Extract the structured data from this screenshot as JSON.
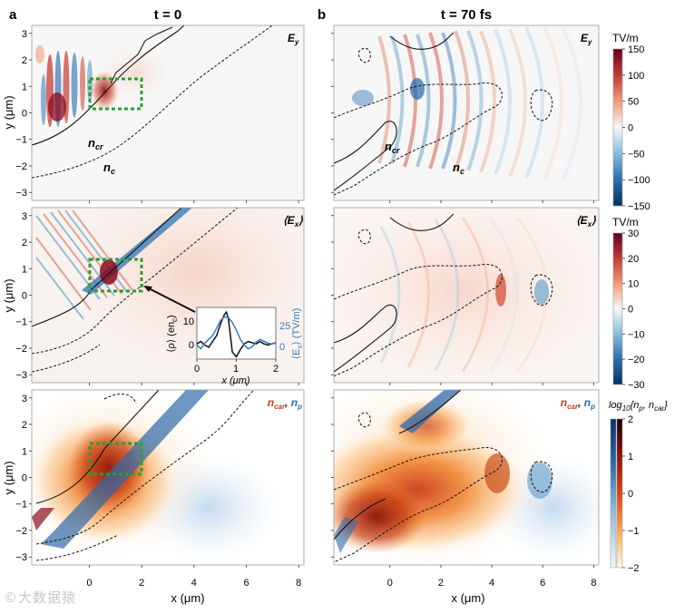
{
  "figure": {
    "panel_labels": [
      "a",
      "b"
    ],
    "column_titles": [
      "t = 0",
      "t = 70 fs"
    ],
    "watermark": "©大数据猿"
  },
  "chart_data": {
    "type": "heatmap",
    "x_axis": {
      "label": "x (μm)",
      "range": [
        -2.2,
        8.2
      ],
      "ticks": [
        0,
        2,
        4,
        6,
        8
      ]
    },
    "y_axis": {
      "label": "y (μm)",
      "range": [
        -3.3,
        3.3
      ],
      "ticks": [
        3,
        2,
        1,
        0,
        -1,
        -2,
        -3
      ]
    },
    "rows": [
      {
        "field": "Ey",
        "label_main": "E",
        "label_sub": "y",
        "contour_labels": [
          {
            "main": "n",
            "sub": "cr"
          },
          {
            "main": "n",
            "sub": "c"
          }
        ]
      },
      {
        "field": "Ex_avg",
        "label_main": "⟨E",
        "label_sub": "x",
        "label_tail": "⟩"
      },
      {
        "field": "density",
        "label_red": "n",
        "label_red_sub": "car",
        "label_sep": ", ",
        "label_blue": "n",
        "label_blue_sub": "p"
      }
    ],
    "colorbars": [
      {
        "title": "TV/m",
        "range": [
          -150,
          150
        ],
        "ticks": [
          150,
          100,
          50,
          0,
          -50,
          -100,
          -150
        ],
        "tick_labels": [
          "150",
          "100",
          "50",
          "0",
          "−50",
          "−100",
          "−150"
        ],
        "colormap": "diverging"
      },
      {
        "title": "TV/m",
        "range": [
          -30,
          30
        ],
        "ticks": [
          30,
          20,
          10,
          0,
          -10,
          -20,
          -30
        ],
        "tick_labels": [
          "30",
          "20",
          "10",
          "0",
          "−10",
          "−20",
          "−30"
        ],
        "colormap": "diverging"
      },
      {
        "title_parts": [
          "log",
          "10",
          "{n",
          "p",
          ", n",
          "car",
          "}"
        ],
        "range": [
          -2,
          2
        ],
        "ticks": [
          2,
          1,
          0,
          -1,
          -2
        ],
        "tick_labels": [
          "2",
          "1",
          "0",
          "−1",
          "−2"
        ],
        "colormap": "dual"
      }
    ],
    "roi_box": {
      "x": [
        0.1,
        2.0
      ],
      "y": [
        0.2,
        1.35
      ]
    },
    "inset": {
      "x_axis": {
        "label": "x (μm)",
        "range": [
          0,
          2
        ],
        "ticks": [
          0,
          1,
          2
        ]
      },
      "left_axis": {
        "label": "⟨ρ⟩ (en",
        "label_sub": "c",
        "label_tail": ")",
        "range": [
          -6,
          16
        ],
        "ticks": [
          0,
          10
        ]
      },
      "right_axis": {
        "label": "⟨E",
        "label_sub": "x",
        "label_tail": "⟩ (TV/m)",
        "range": [
          -15,
          40
        ],
        "ticks": [
          0,
          25
        ]
      },
      "series": [
        {
          "name": "rho",
          "color": "#111111",
          "x": [
            0,
            0.1,
            0.2,
            0.3,
            0.4,
            0.5,
            0.6,
            0.7,
            0.75,
            0.8,
            0.85,
            0.9,
            1.0,
            1.1,
            1.2,
            1.3,
            1.4,
            1.5,
            1.6,
            1.7,
            1.8,
            1.9,
            2.0
          ],
          "y": [
            0.5,
            1.5,
            0,
            -1,
            1.5,
            4,
            9,
            13,
            14,
            11,
            4,
            -3,
            -5,
            -2,
            0.5,
            1.5,
            1,
            0.5,
            1.5,
            0.5,
            0,
            0.5,
            1
          ]
        },
        {
          "name": "Ex",
          "color": "#3a7ab8",
          "x": [
            0,
            0.1,
            0.2,
            0.3,
            0.4,
            0.5,
            0.6,
            0.7,
            0.8,
            0.9,
            1.0,
            1.1,
            1.2,
            1.3,
            1.4,
            1.5,
            1.6,
            1.7,
            1.8,
            1.9,
            2.0
          ],
          "y": [
            0,
            -4,
            2,
            6,
            10,
            18,
            26,
            30,
            29,
            24,
            16,
            6,
            0,
            -4,
            -2,
            3,
            6,
            4,
            2,
            1,
            2
          ]
        }
      ]
    }
  }
}
